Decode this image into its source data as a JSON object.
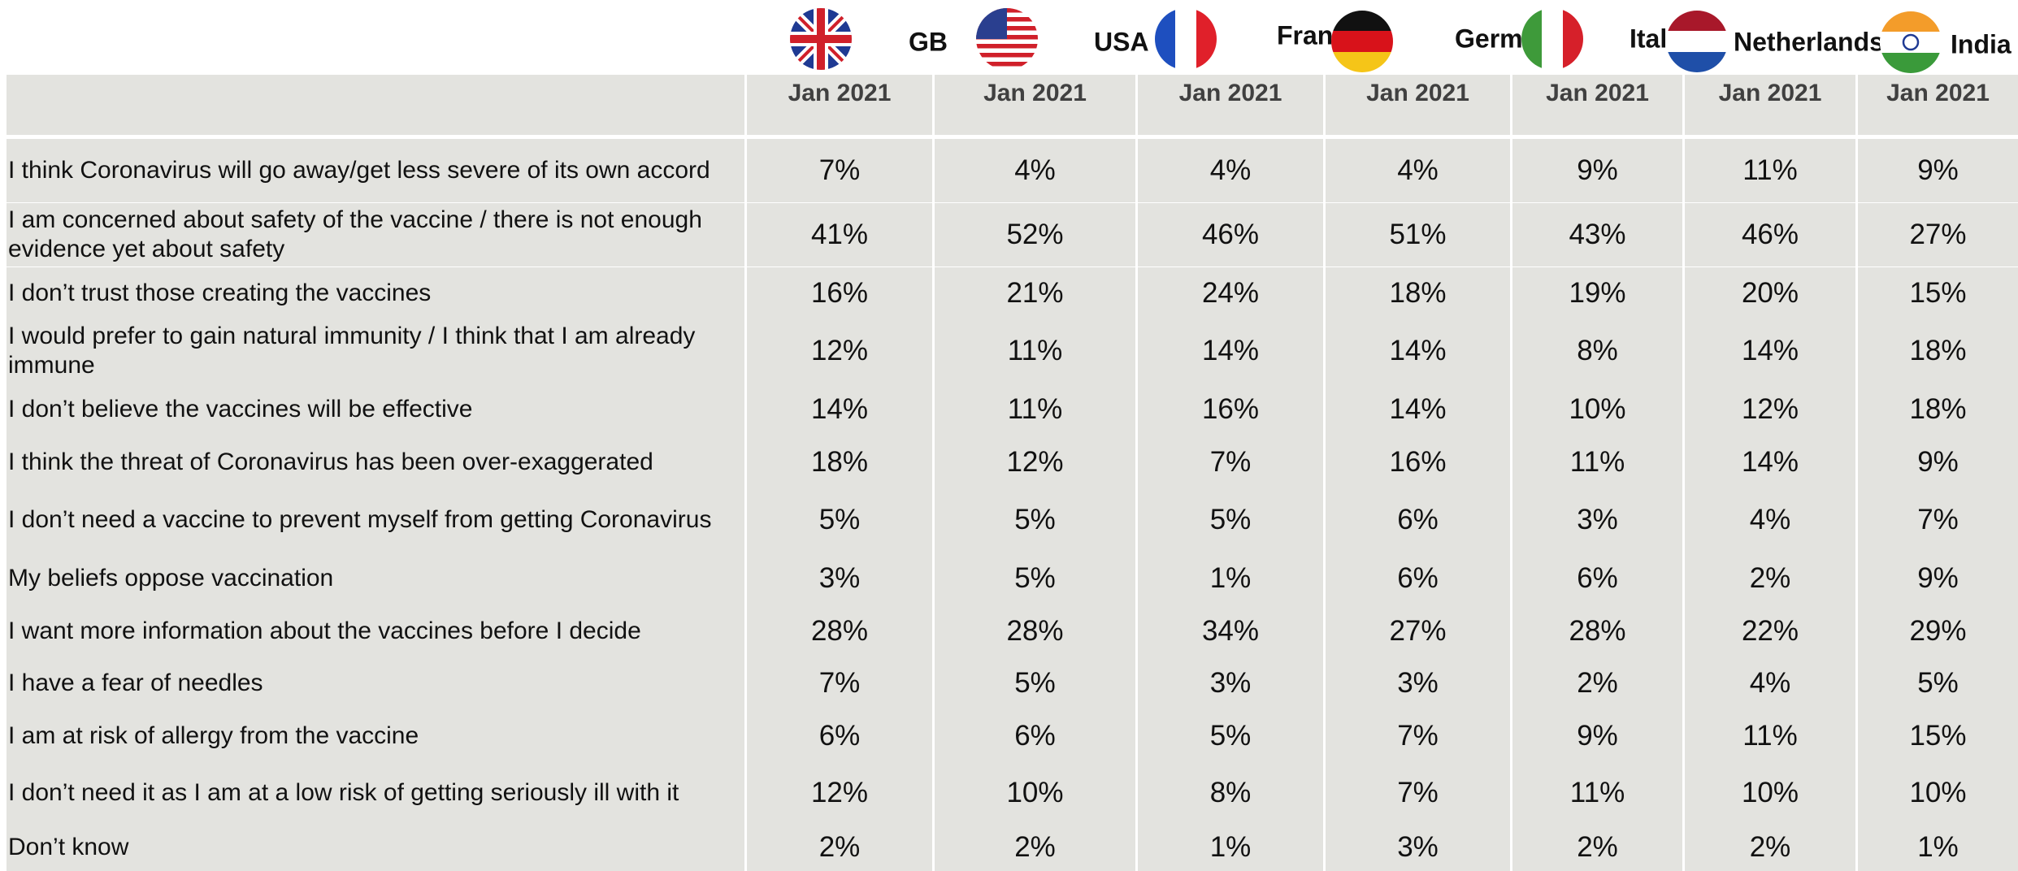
{
  "countries": [
    "GB",
    "USA",
    "France",
    "Germany",
    "Italy",
    "Netherlands",
    "India"
  ],
  "periods": [
    "Jan 2021",
    "Jan 2021",
    "Jan 2021",
    "Jan 2021",
    "Jan 2021",
    "Jan 2021",
    "Jan 2021"
  ],
  "table": {
    "rows": [
      [
        "I think Coronavirus will go away/get less severe of its own accord",
        "7%",
        "4%",
        "4%",
        "4%",
        "9%",
        "11%",
        "9%"
      ],
      [
        "I am concerned about safety of the vaccine / there is not enough evidence yet about safety",
        "41%",
        "52%",
        "46%",
        "51%",
        "43%",
        "46%",
        "27%"
      ],
      [
        "I don’t trust those creating the vaccines",
        "16%",
        "21%",
        "24%",
        "18%",
        "19%",
        "20%",
        "15%"
      ],
      [
        "I would prefer to gain natural immunity / I think that I am already immune",
        "12%",
        "11%",
        "14%",
        "14%",
        "8%",
        "14%",
        "18%"
      ],
      [
        "I don’t believe the vaccines will be effective",
        "14%",
        "11%",
        "16%",
        "14%",
        "10%",
        "12%",
        "18%"
      ],
      [
        "I think the threat of Coronavirus has been over-exaggerated",
        "18%",
        "12%",
        "7%",
        "16%",
        "11%",
        "14%",
        "9%"
      ],
      [
        "I don’t need a vaccine to prevent myself from getting Coronavirus",
        "5%",
        "5%",
        "5%",
        "6%",
        "3%",
        "4%",
        "7%"
      ],
      [
        "My beliefs oppose vaccination",
        "3%",
        "5%",
        "1%",
        "6%",
        "6%",
        "2%",
        "9%"
      ],
      [
        "I want more information about the vaccines before I decide",
        "28%",
        "28%",
        "34%",
        "27%",
        "28%",
        "22%",
        "29%"
      ],
      [
        "I have a fear of needles",
        "7%",
        "5%",
        "3%",
        "3%",
        "2%",
        "4%",
        "5%"
      ],
      [
        "I am at risk of allergy from the vaccine",
        "6%",
        "6%",
        "5%",
        "7%",
        "9%",
        "11%",
        "15%"
      ],
      [
        "I don’t need it as I am at a low risk of getting seriously ill with it",
        "12%",
        "10%",
        "8%",
        "7%",
        "11%",
        "10%",
        "10%"
      ],
      [
        "Don’t know",
        "2%",
        "2%",
        "1%",
        "3%",
        "2%",
        "2%",
        "1%"
      ]
    ]
  }
}
